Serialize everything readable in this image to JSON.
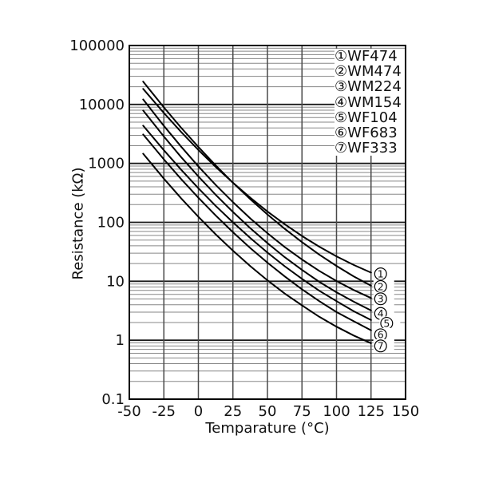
{
  "chart_data": {
    "type": "line",
    "title": "",
    "xlabel": "Temparature (°C)",
    "ylabel": "Resistance (kΩ)",
    "xlim": [
      -50,
      150
    ],
    "x_ticks": [
      -50,
      -25,
      0,
      25,
      50,
      75,
      100,
      125,
      150
    ],
    "ylim": [
      0.1,
      100000
    ],
    "y_scale": "log10",
    "y_major_ticks": [
      "100000",
      "10000",
      "1000",
      "100",
      "10",
      "1",
      "0.1"
    ],
    "grid": {
      "vertical_lines_every_c": 25,
      "horizontal_lines": "log decades with minor lines at 2-9",
      "grid_on": true
    },
    "legend_position": "top-right inside plot",
    "curves_start_c": -40,
    "curves_end_c": 125,
    "temperatures_c": [
      -40,
      -25,
      -12.5,
      0,
      12.5,
      25,
      37.5,
      50,
      62.5,
      75,
      87.5,
      100,
      112.5,
      125
    ],
    "series": [
      {
        "symbol": "①",
        "name": "WF474",
        "resistance_kohm": [
          18400,
          7170,
          3410,
          1690,
          874,
          470,
          263,
          153,
          93,
          58.7,
          38.6,
          26.5,
          18.9,
          14.0
        ]
      },
      {
        "symbol": "②",
        "name": "WM474",
        "resistance_kohm": [
          24400,
          8930,
          4030,
          1900,
          926,
          470,
          248,
          136,
          77.6,
          46.1,
          28.4,
          18.2,
          12.1,
          8.4
        ]
      },
      {
        "symbol": "③",
        "name": "WM224",
        "resistance_kohm": [
          12200,
          4320,
          1920,
          889,
          432,
          220,
          117,
          65.4,
          38.2,
          23.4,
          15.0,
          10.1,
          7.1,
          5.2
        ]
      },
      {
        "symbol": "④",
        "name": "WM154",
        "resistance_kohm": [
          7900,
          2860,
          1280,
          601,
          294,
          150,
          79.9,
          44.4,
          25.7,
          15.6,
          9.8,
          6.5,
          4.5,
          3.2
        ]
      },
      {
        "symbol": "⑤",
        "name": "WF104",
        "resistance_kohm": [
          4370,
          1670,
          780,
          379,
          191,
          100,
          54.4,
          30.7,
          18.0,
          11.0,
          6.9,
          4.6,
          3.1,
          2.2
        ]
      },
      {
        "symbol": "⑥",
        "name": "WF683",
        "resistance_kohm": [
          3100,
          1170,
          542,
          261,
          131,
          68,
          36.8,
          20.7,
          12.1,
          7.3,
          4.6,
          3.0,
          2.1,
          1.47
        ]
      },
      {
        "symbol": "⑦",
        "name": "WF333",
        "resistance_kohm": [
          1460,
          550,
          256,
          124,
          62.6,
          33,
          18.1,
          10.4,
          6.2,
          3.9,
          2.5,
          1.7,
          1.2,
          0.89
        ]
      }
    ],
    "marker_digits": [
      "1",
      "2",
      "3",
      "4",
      "5",
      "6",
      "7"
    ],
    "colors": {
      "background": "#ffffff",
      "curve": "#000000",
      "grid_minor": "#878787",
      "grid_major": "#1a1a1a",
      "grid_vertical": "#4a4a4a",
      "border": "#000000",
      "text": "#111111"
    }
  }
}
